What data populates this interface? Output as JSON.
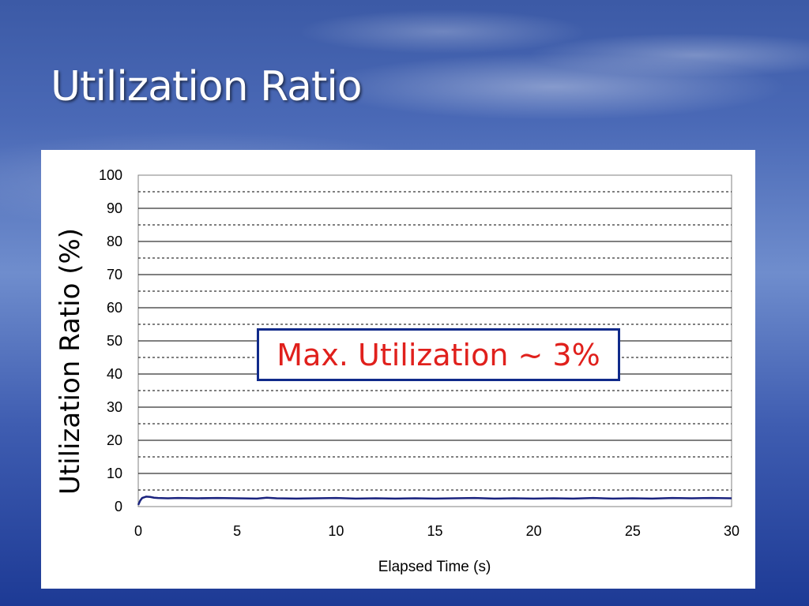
{
  "slide": {
    "title": "Utilization Ratio"
  },
  "chart_data": {
    "type": "line",
    "ylabel": "Utilization Ratio (%)",
    "xlabel": "Elapsed Time (s)",
    "xlim": [
      0,
      30
    ],
    "ylim": [
      0,
      100
    ],
    "xticks": [
      0,
      5,
      10,
      15,
      20,
      25,
      30
    ],
    "yticks": [
      0,
      10,
      20,
      30,
      40,
      50,
      60,
      70,
      80,
      90,
      100
    ],
    "grid": "horizontal",
    "annotation": "Max. Utilization ~ 3%",
    "series": [
      {
        "color": "#1a237e",
        "x": [
          0,
          0.1,
          0.2,
          0.4,
          0.6,
          0.8,
          1,
          1.5,
          2,
          3,
          4,
          5,
          6,
          6.5,
          7,
          8,
          9,
          10,
          11,
          12,
          13,
          14,
          15,
          16,
          17,
          18,
          19,
          20,
          21,
          22,
          23,
          24,
          25,
          26,
          27,
          28,
          29,
          30
        ],
        "y": [
          0.5,
          1.8,
          2.6,
          3.0,
          2.9,
          2.7,
          2.6,
          2.5,
          2.6,
          2.5,
          2.6,
          2.5,
          2.4,
          2.7,
          2.5,
          2.4,
          2.5,
          2.6,
          2.4,
          2.5,
          2.4,
          2.5,
          2.4,
          2.5,
          2.6,
          2.4,
          2.5,
          2.4,
          2.5,
          2.4,
          2.6,
          2.4,
          2.5,
          2.4,
          2.6,
          2.5,
          2.6,
          2.5
        ]
      }
    ]
  }
}
